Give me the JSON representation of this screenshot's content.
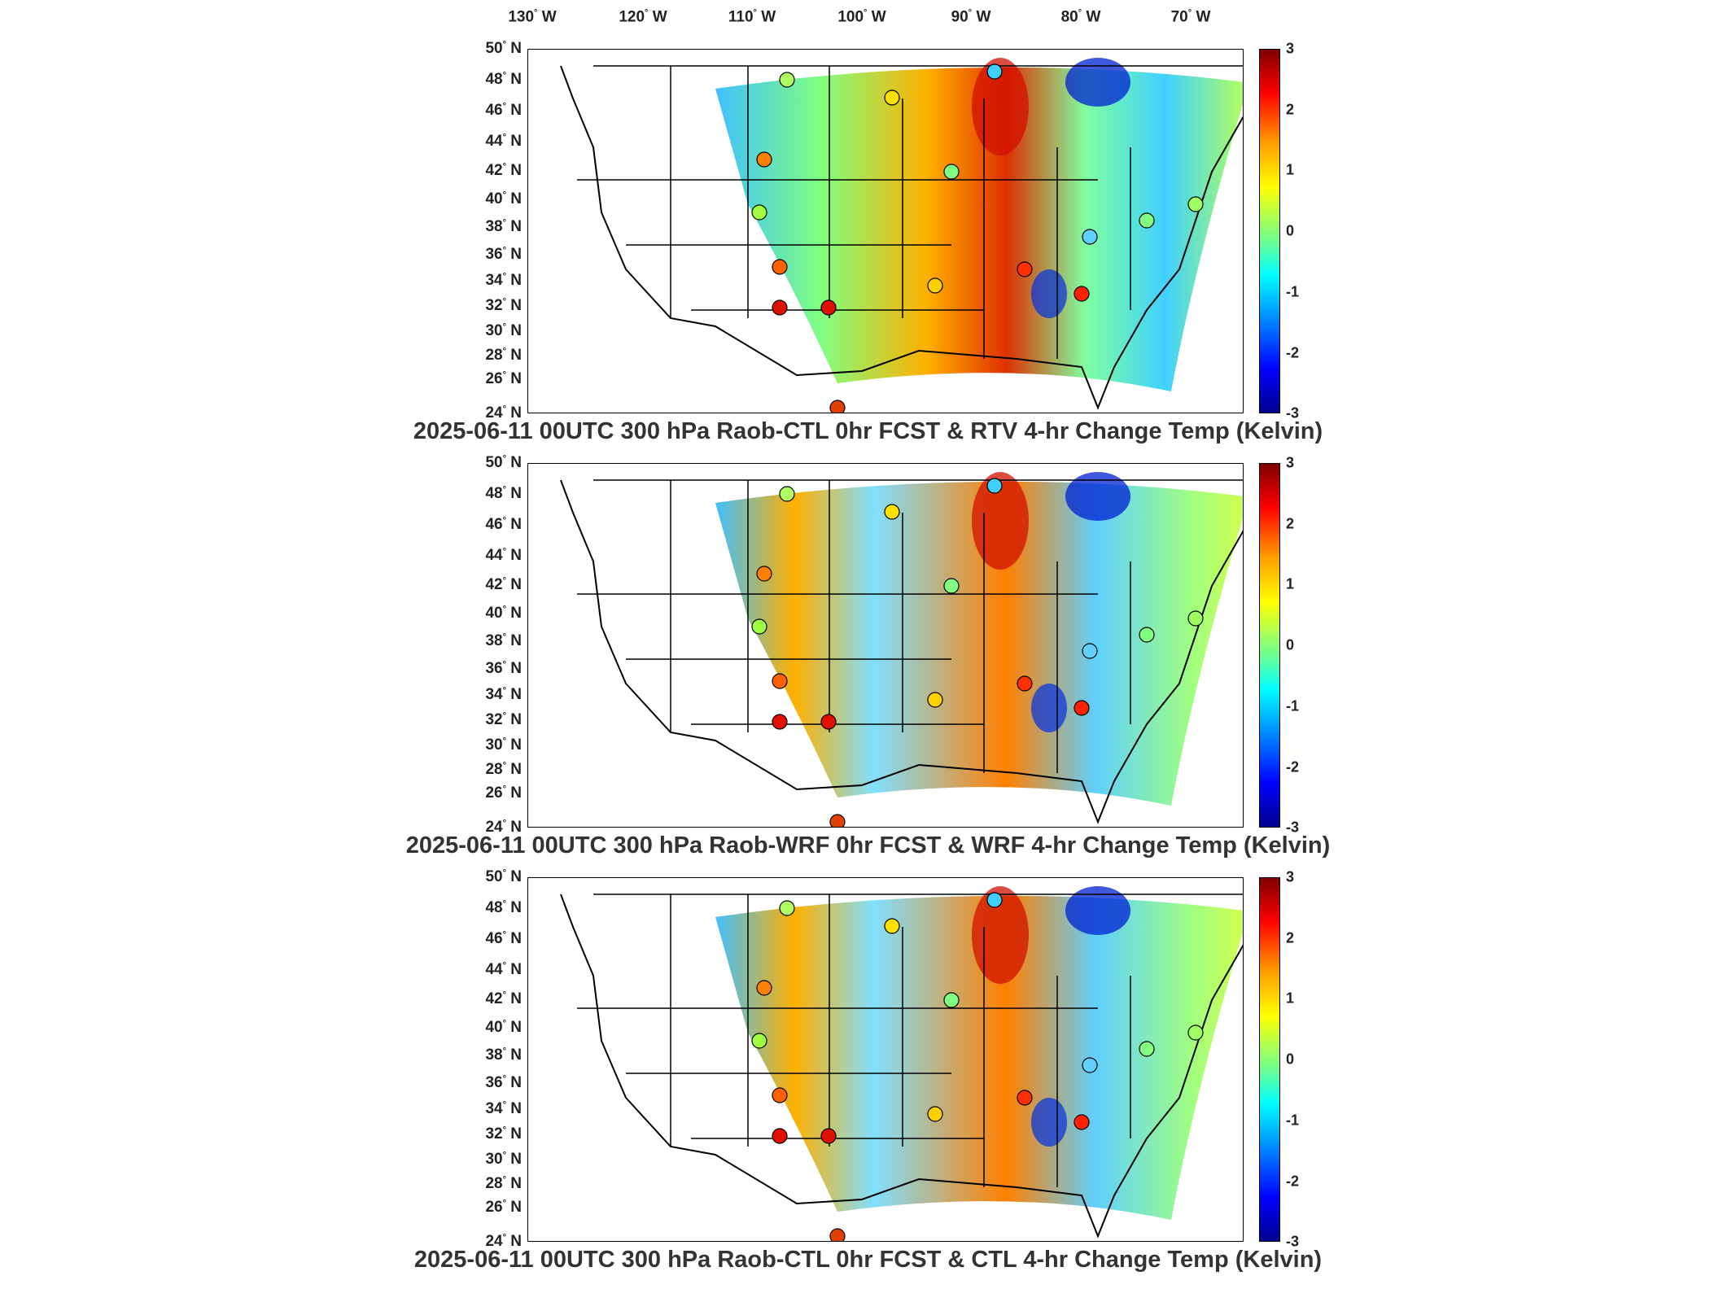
{
  "lon_labels": [
    {
      "deg": "130",
      "hem": "W"
    },
    {
      "deg": "120",
      "hem": "W"
    },
    {
      "deg": "110",
      "hem": "W"
    },
    {
      "deg": "100",
      "hem": "W"
    },
    {
      "deg": "90",
      "hem": "W"
    },
    {
      "deg": "80",
      "hem": "W"
    },
    {
      "deg": "70",
      "hem": "W"
    }
  ],
  "lat_labels": [
    "50",
    "48",
    "46",
    "44",
    "42",
    "40",
    "38",
    "36",
    "34",
    "32",
    "30",
    "28",
    "26",
    "24"
  ],
  "lat_hemisphere": "N",
  "degree_symbol": "°",
  "colorbar": {
    "ticks": [
      "3",
      "2",
      "1",
      "0",
      "-1",
      "-2",
      "-3"
    ],
    "range": [
      -3,
      3
    ],
    "colormap": "jet",
    "colors": [
      "#00008f",
      "#0000ff",
      "#00ffff",
      "#ffff00",
      "#ff0000",
      "#800000"
    ]
  },
  "panels": [
    {
      "title": "2025-06-11 00UTC 300 hPa Raob-CTL 0hr FCST & RTV 4-hr Change Temp (Kelvin)"
    },
    {
      "title": "2025-06-11 00UTC 300 hPa Raob-WRF 0hr FCST & WRF 4-hr Change Temp (Kelvin)"
    },
    {
      "title": "2025-06-11 00UTC 300 hPa Raob-CTL 0hr FCST & CTL 4-hr Change Temp (Kelvin)"
    }
  ]
}
